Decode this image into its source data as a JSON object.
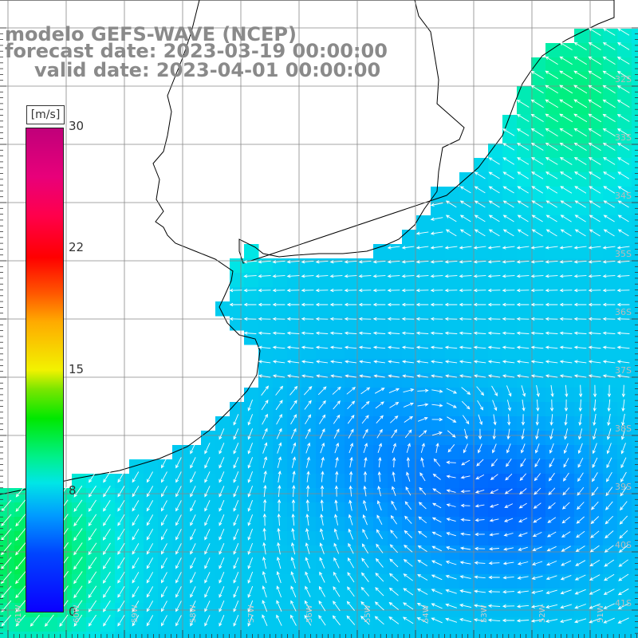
{
  "title": {
    "line1": "modelo GEFS-WAVE (NCEP)",
    "line2": "forecast date: 2023-03-19 00:00:00",
    "line3": "valid date: 2023-04-01 00:00:00"
  },
  "colorbar": {
    "units": "[m/s]",
    "ticks": [
      {
        "key": "cb30",
        "label": "30"
      },
      {
        "key": "cb22",
        "label": "22"
      },
      {
        "key": "cb15",
        "label": "15"
      },
      {
        "key": "cb8",
        "label": "8"
      },
      {
        "key": "cb0",
        "label": "0"
      }
    ]
  },
  "map_labels": {
    "latitudes": [
      "32S",
      "33S",
      "34S",
      "35S",
      "36S",
      "37S",
      "38S",
      "39S",
      "40S",
      "41S"
    ],
    "longitudes": [
      "61W",
      "60W",
      "59W",
      "58W",
      "57W",
      "56W",
      "55W",
      "54W",
      "53W",
      "52W",
      "51W"
    ]
  },
  "colors": {
    "land": "#ffffff",
    "coast": "#000000",
    "grid": "#888888",
    "arrows": "#ffffff",
    "title_text": "#8a8a8a"
  }
}
